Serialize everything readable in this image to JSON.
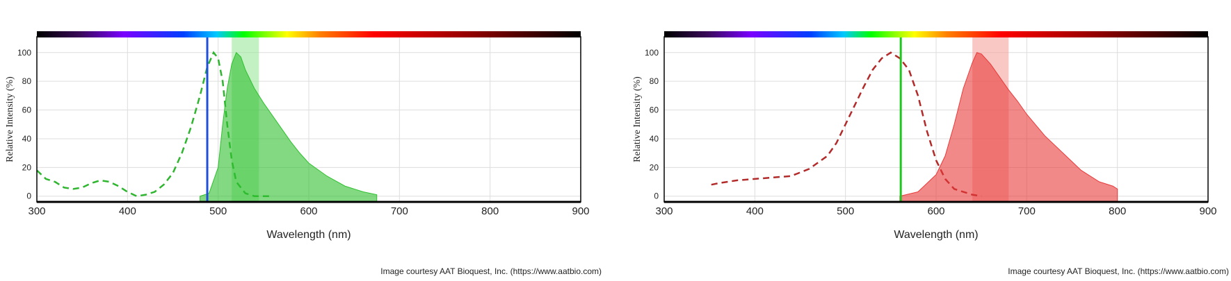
{
  "chart_data": [
    {
      "type": "spectrum",
      "x_label": "Wavelength (nm)",
      "y_label": "Relative Intensity (%)",
      "credit": "Image courtesy AAT Bioquest, Inc. (https://www.aatbio.com)",
      "xlim": [
        300,
        900
      ],
      "xticks": [
        300,
        400,
        500,
        600,
        700,
        800,
        900
      ],
      "ylim": [
        -4,
        111
      ],
      "yticks": [
        0,
        20,
        40,
        60,
        80,
        100
      ],
      "grid": true,
      "laser": {
        "value": 488,
        "color": "#1f4fd8"
      },
      "band": {
        "range": [
          515,
          545
        ],
        "color": "#9be89b"
      },
      "series": [
        {
          "style": "dashed",
          "color": "#2fb52f",
          "x": [
            300,
            310,
            320,
            330,
            340,
            350,
            360,
            370,
            380,
            390,
            400,
            410,
            420,
            430,
            440,
            450,
            460,
            470,
            480,
            488,
            495,
            500,
            505,
            510,
            515,
            520,
            530,
            540,
            560
          ],
          "values": [
            18,
            12,
            10,
            6,
            5,
            6,
            9,
            11,
            10,
            7,
            3,
            0,
            1,
            3,
            8,
            16,
            30,
            48,
            70,
            90,
            100,
            96,
            80,
            50,
            25,
            10,
            2,
            0,
            0
          ]
        },
        {
          "style": "filled",
          "color": "#2fc02f",
          "x": [
            480,
            490,
            500,
            505,
            510,
            515,
            520,
            525,
            530,
            540,
            550,
            560,
            570,
            580,
            590,
            600,
            620,
            640,
            660,
            675
          ],
          "values": [
            0,
            2,
            20,
            50,
            75,
            92,
            100,
            97,
            88,
            75,
            65,
            56,
            47,
            38,
            30,
            23,
            14,
            7,
            3,
            1
          ]
        }
      ]
    },
    {
      "type": "spectrum",
      "x_label": "Wavelength (nm)",
      "y_label": "Relative Intensity (%)",
      "credit": "Image courtesy AAT Bioquest, Inc. (https://www.aatbio.com)",
      "xlim": [
        300,
        900
      ],
      "xticks": [
        300,
        400,
        500,
        600,
        700,
        800,
        900
      ],
      "ylim": [
        -4,
        111
      ],
      "yticks": [
        0,
        20,
        40,
        60,
        80,
        100
      ],
      "grid": true,
      "laser": {
        "value": 561,
        "color": "#1ec81e"
      },
      "band": {
        "range": [
          640,
          680
        ],
        "color": "#f7a49c"
      },
      "series": [
        {
          "style": "dashed",
          "color": "#b22a2a",
          "x": [
            352,
            360,
            380,
            400,
            420,
            440,
            460,
            480,
            490,
            500,
            510,
            520,
            530,
            540,
            550,
            560,
            570,
            580,
            590,
            600,
            610,
            620,
            640,
            650
          ],
          "values": [
            8,
            9,
            11,
            12,
            13,
            14,
            19,
            28,
            37,
            50,
            63,
            76,
            88,
            96,
            100,
            96,
            88,
            70,
            45,
            25,
            12,
            5,
            1,
            0
          ]
        },
        {
          "style": "filled",
          "color": "#e83a3a",
          "x": [
            560,
            580,
            600,
            610,
            620,
            630,
            640,
            645,
            650,
            660,
            670,
            680,
            690,
            700,
            720,
            740,
            760,
            780,
            795,
            800
          ],
          "values": [
            0,
            3,
            15,
            28,
            50,
            75,
            93,
            100,
            99,
            92,
            83,
            74,
            66,
            57,
            42,
            30,
            18,
            10,
            7,
            5
          ]
        }
      ]
    }
  ]
}
